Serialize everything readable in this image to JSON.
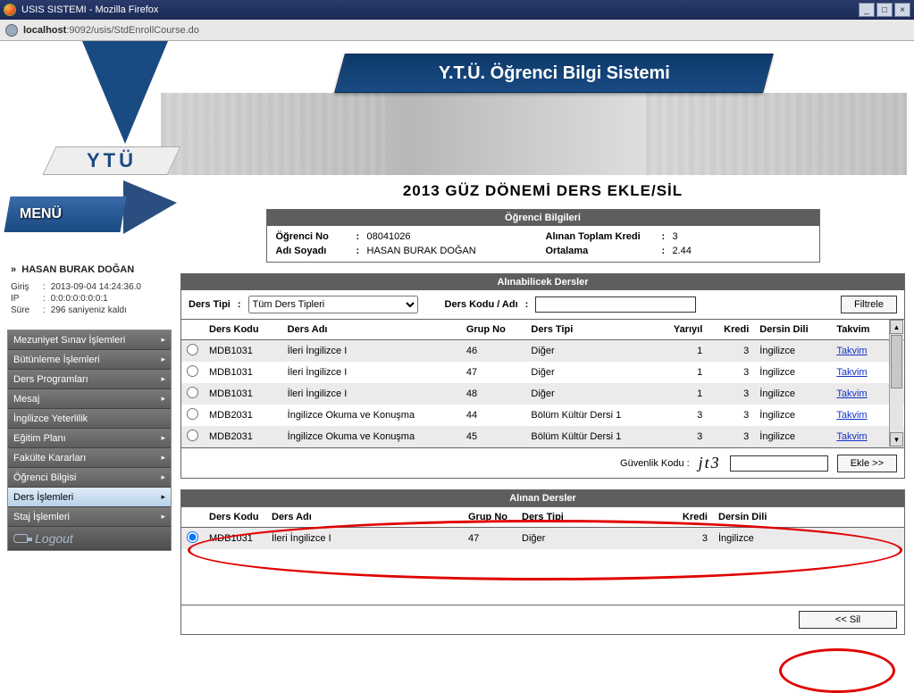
{
  "window": {
    "title": "USIS SISTEMI - Mozilla Firefox",
    "url_host": "localhost",
    "url_path": ":9092/usis/StdEnrollCourse.do"
  },
  "banner": {
    "title": "Y.T.Ü. Öğrenci Bilgi Sistemi",
    "logo_text": "YTÜ"
  },
  "menu": {
    "label": "MENÜ",
    "user_prefix": "»",
    "user_name": "HASAN BURAK DOĞAN",
    "login_label": "Giriş",
    "login_value": "2013-09-04 14:24:36.0",
    "ip_label": "IP",
    "ip_value": "0:0:0:0:0:0:0:1",
    "time_label": "Süre",
    "time_value": "296 saniyeniz kaldı",
    "items": [
      {
        "label": "Mezuniyet Sınav İşlemleri",
        "has_sub": true
      },
      {
        "label": "Bütünleme İşlemleri",
        "has_sub": true
      },
      {
        "label": "Ders Programları",
        "has_sub": true
      },
      {
        "label": "Mesaj",
        "has_sub": true
      },
      {
        "label": "İngilizce Yeterlilik",
        "has_sub": false
      },
      {
        "label": "Eğitim Planı",
        "has_sub": true
      },
      {
        "label": "Fakülte Kararları",
        "has_sub": true
      },
      {
        "label": "Öğrenci Bilgisi",
        "has_sub": true
      },
      {
        "label": "Ders İşlemleri",
        "has_sub": true
      },
      {
        "label": "Staj İşlemleri",
        "has_sub": true
      }
    ],
    "active_index": 8,
    "logout": "Logout"
  },
  "page_title": "2013 GÜZ DÖNEMİ DERS EKLE/SİL",
  "student_info": {
    "header": "Öğrenci Bilgileri",
    "no_label": "Öğrenci No",
    "no_value": "08041026",
    "name_label": "Adı Soyadı",
    "name_value": "HASAN BURAK DOĞAN",
    "credit_label": "Alınan Toplam Kredi",
    "credit_value": "3",
    "gpa_label": "Ortalama",
    "gpa_value": "2.44"
  },
  "available": {
    "header": "Alınabilicek Dersler",
    "type_label": "Ders Tipi",
    "type_value": "Tüm Ders Tipleri",
    "code_label": "Ders Kodu / Adı",
    "filter_btn": "Filtrele",
    "columns": {
      "code": "Ders Kodu",
      "name": "Ders Adı",
      "group": "Grup No",
      "type": "Ders Tipi",
      "sem": "Yarıyıl",
      "credit": "Kredi",
      "lang": "Dersin Dili",
      "cal": "Takvim"
    },
    "rows": [
      {
        "code": "MDB1031",
        "name": "İleri İngilizce I",
        "group": "46",
        "type": "Diğer",
        "sem": "1",
        "credit": "3",
        "lang": "İngilizce",
        "cal": "Takvim"
      },
      {
        "code": "MDB1031",
        "name": "İleri İngilizce I",
        "group": "47",
        "type": "Diğer",
        "sem": "1",
        "credit": "3",
        "lang": "İngilizce",
        "cal": "Takvim"
      },
      {
        "code": "MDB1031",
        "name": "İleri İngilizce I",
        "group": "48",
        "type": "Diğer",
        "sem": "1",
        "credit": "3",
        "lang": "İngilizce",
        "cal": "Takvim"
      },
      {
        "code": "MDB2031",
        "name": "İngilizce Okuma ve Konuşma",
        "group": "44",
        "type": "Bölüm Kültür Dersi 1",
        "sem": "3",
        "credit": "3",
        "lang": "İngilizce",
        "cal": "Takvim"
      },
      {
        "code": "MDB2031",
        "name": "İngilizce Okuma ve Konuşma",
        "group": "45",
        "type": "Bölüm Kültür Dersi 1",
        "sem": "3",
        "credit": "3",
        "lang": "İngilizce",
        "cal": "Takvim"
      }
    ],
    "security_label": "Güvenlik Kodu :",
    "security_code": "jt3",
    "add_btn": "Ekle >>"
  },
  "taken": {
    "header": "Alınan Dersler",
    "columns": {
      "code": "Ders Kodu",
      "name": "Ders Adı",
      "group": "Grup No",
      "type": "Ders Tipi",
      "credit": "Kredi",
      "lang": "Dersin Dili"
    },
    "rows": [
      {
        "code": "MDB1031",
        "name": "İleri İngilizce I",
        "group": "47",
        "type": "Diğer",
        "credit": "3",
        "lang": "İngilizce"
      }
    ],
    "remove_btn": "<< Sil"
  },
  "colon": ":"
}
